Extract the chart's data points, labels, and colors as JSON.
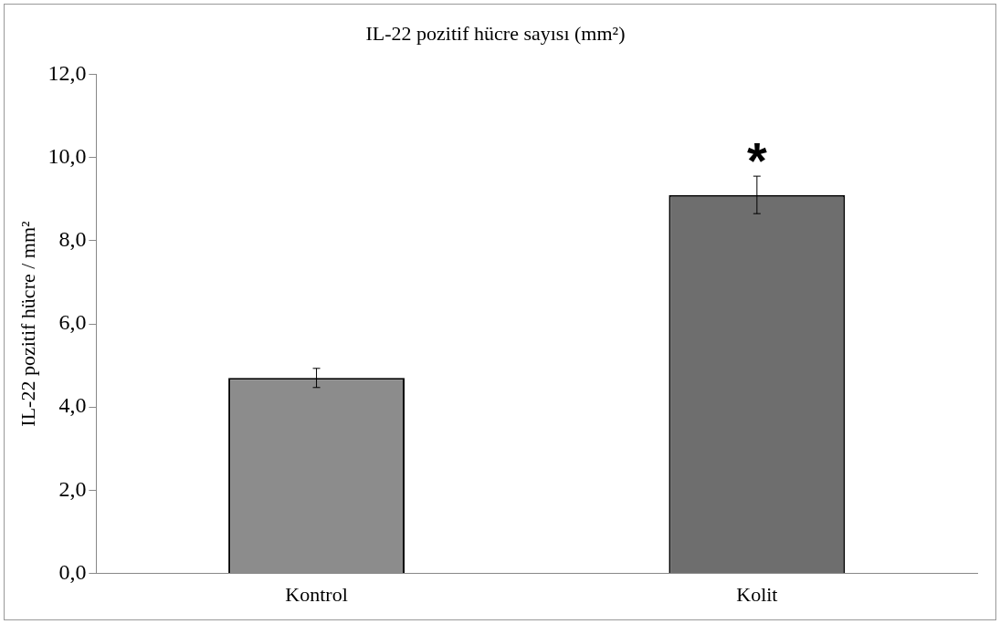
{
  "chart_data": {
    "type": "bar",
    "title": "IL-22 pozitif hücre sayısı (mm²)",
    "ylabel": "IL-22 pozitif hücre / mm²",
    "categories": [
      "Kontrol",
      "Kolit"
    ],
    "values": [
      4.7,
      9.1
    ],
    "errors": [
      0.23,
      0.45
    ],
    "colors": [
      "#8c8c8c",
      "#6e6e6e"
    ],
    "ylim": [
      0,
      12
    ],
    "yticks": [
      {
        "value": 0,
        "label": "0,0"
      },
      {
        "value": 2,
        "label": "2,0"
      },
      {
        "value": 4,
        "label": "4,0"
      },
      {
        "value": 6,
        "label": "6,0"
      },
      {
        "value": 8,
        "label": "8,0"
      },
      {
        "value": 10,
        "label": "10,0"
      },
      {
        "value": 12,
        "label": "12,0"
      }
    ],
    "annotations": [
      "*"
    ]
  }
}
